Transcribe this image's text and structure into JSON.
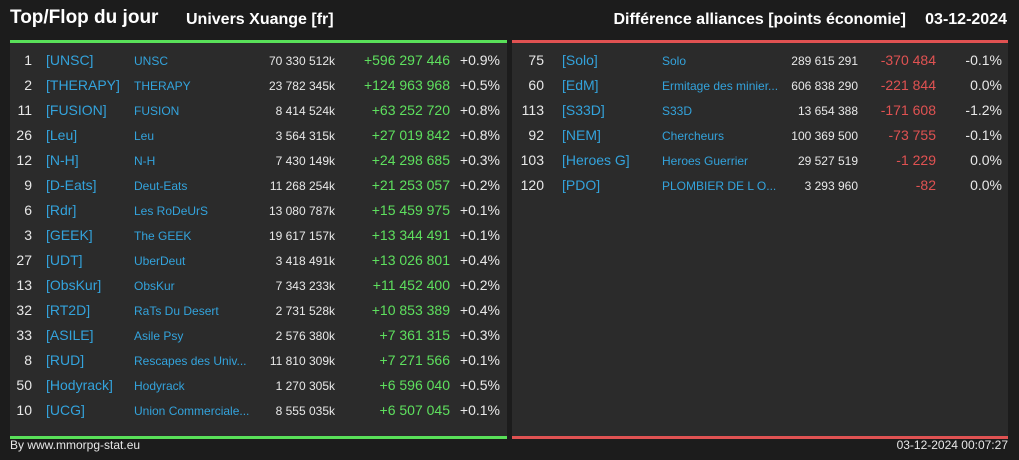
{
  "header": {
    "title": "Top/Flop du jour",
    "universe": "Univers Xuange [fr]",
    "metric": "Différence alliances [points économie]",
    "date": "03-12-2024"
  },
  "colors": {
    "positive": "#5ee05e",
    "negative": "#e05252",
    "tag": "#33a3dc"
  },
  "top": [
    {
      "rank": "1",
      "tag": "[UNSC]",
      "name": "UNSC",
      "points": "70 330 512k",
      "diff": "+596 297 446",
      "pct": "+0.9%"
    },
    {
      "rank": "2",
      "tag": "[THERAPY]",
      "name": "THERAPY",
      "points": "23 782 345k",
      "diff": "+124 963 968",
      "pct": "+0.5%"
    },
    {
      "rank": "11",
      "tag": "[FUSION]",
      "name": "FUSION",
      "points": "8 414 524k",
      "diff": "+63 252 720",
      "pct": "+0.8%"
    },
    {
      "rank": "26",
      "tag": "[Leu]",
      "name": "Leu",
      "points": "3 564 315k",
      "diff": "+27 019 842",
      "pct": "+0.8%"
    },
    {
      "rank": "12",
      "tag": "[N-H]",
      "name": "N-H",
      "points": "7 430 149k",
      "diff": "+24 298 685",
      "pct": "+0.3%"
    },
    {
      "rank": "9",
      "tag": "[D-Eats]",
      "name": "Deut-Eats",
      "points": "11 268 254k",
      "diff": "+21 253 057",
      "pct": "+0.2%"
    },
    {
      "rank": "6",
      "tag": "[Rdr]",
      "name": "Les RoDeUrS",
      "points": "13 080 787k",
      "diff": "+15 459 975",
      "pct": "+0.1%"
    },
    {
      "rank": "3",
      "tag": "[GEEK]",
      "name": "The GEEK",
      "points": "19 617 157k",
      "diff": "+13 344 491",
      "pct": "+0.1%"
    },
    {
      "rank": "27",
      "tag": "[UDT]",
      "name": "UberDeut",
      "points": "3 418 491k",
      "diff": "+13 026 801",
      "pct": "+0.4%"
    },
    {
      "rank": "13",
      "tag": "[ObsKur]",
      "name": "ObsKur",
      "points": "7 343 233k",
      "diff": "+11 452 400",
      "pct": "+0.2%"
    },
    {
      "rank": "32",
      "tag": "[RT2D]",
      "name": "RaTs Du Desert",
      "points": "2 731 528k",
      "diff": "+10 853 389",
      "pct": "+0.4%"
    },
    {
      "rank": "33",
      "tag": "[ASILE]",
      "name": "Asile Psy",
      "points": "2 576 380k",
      "diff": "+7 361 315",
      "pct": "+0.3%"
    },
    {
      "rank": "8",
      "tag": "[RUD]",
      "name": "Rescapes des Univ...",
      "points": "11 810 309k",
      "diff": "+7 271 566",
      "pct": "+0.1%"
    },
    {
      "rank": "50",
      "tag": "[Hodyrack]",
      "name": "Hodyrack",
      "points": "1 270 305k",
      "diff": "+6 596 040",
      "pct": "+0.5%"
    },
    {
      "rank": "10",
      "tag": "[UCG]",
      "name": "Union Commerciale...",
      "points": "8 555 035k",
      "diff": "+6 507 045",
      "pct": "+0.1%"
    }
  ],
  "flop": [
    {
      "rank": "75",
      "tag": "[Solo]",
      "name": "Solo",
      "points": "289 615 291",
      "diff": "-370 484",
      "pct": "-0.1%"
    },
    {
      "rank": "60",
      "tag": "[EdM]",
      "name": "Ermitage des minier...",
      "points": "606 838 290",
      "diff": "-221 844",
      "pct": "0.0%"
    },
    {
      "rank": "113",
      "tag": "[S33D]",
      "name": "S33D",
      "points": "13 654 388",
      "diff": "-171 608",
      "pct": "-1.2%"
    },
    {
      "rank": "92",
      "tag": "[NEM]",
      "name": "Chercheurs",
      "points": "100 369 500",
      "diff": "-73 755",
      "pct": "-0.1%"
    },
    {
      "rank": "103",
      "tag": "[Heroes G]",
      "name": "Heroes Guerrier",
      "points": "29 527 519",
      "diff": "-1 229",
      "pct": "0.0%"
    },
    {
      "rank": "120",
      "tag": "[PDO]",
      "name": "PLOMBIER DE L O...",
      "points": "3 293 960",
      "diff": "-82",
      "pct": "0.0%"
    }
  ],
  "footer": {
    "credit": "By www.mmorpg-stat.eu",
    "timestamp": "03-12-2024 00:07:27"
  }
}
